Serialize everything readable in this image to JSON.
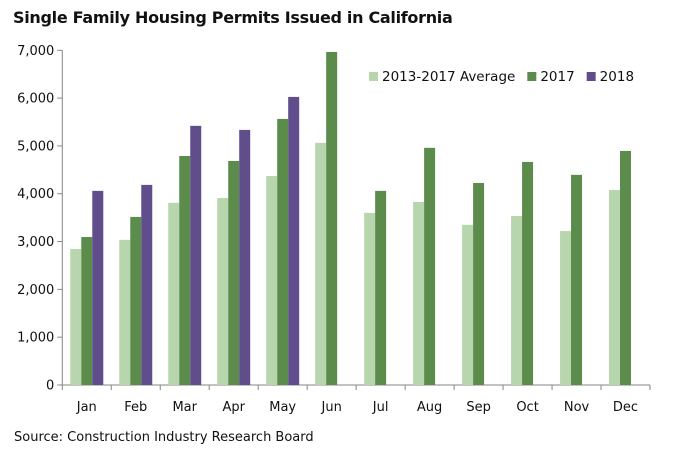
{
  "chart_data": {
    "type": "bar",
    "title": "Single Family Housing Permits Issued in California",
    "source": "Source: Construction Industry Research Board",
    "xlabel": "",
    "ylabel": "",
    "ylim": [
      0,
      7000
    ],
    "yticks": [
      "0",
      "1,000",
      "2,000",
      "3,000",
      "4,000",
      "5,000",
      "6,000",
      "7,000"
    ],
    "grid": false,
    "legend_position": "top-right",
    "categories": [
      "Jan",
      "Feb",
      "Mar",
      "Apr",
      "May",
      "Jun",
      "Jul",
      "Aug",
      "Sep",
      "Oct",
      "Nov",
      "Dec"
    ],
    "series": [
      {
        "name": "2013-2017 Average",
        "color": "#b8d6ad",
        "values": [
          2845,
          3035,
          3810,
          3910,
          4370,
          5065,
          3600,
          3830,
          3350,
          3535,
          3220,
          4080
        ]
      },
      {
        "name": "2017",
        "color": "#5b8c4b",
        "values": [
          3095,
          3515,
          4790,
          4685,
          5565,
          6965,
          4060,
          4960,
          4225,
          4665,
          4395,
          4895
        ]
      },
      {
        "name": "2018",
        "color": "#604d8b",
        "values": [
          4060,
          4185,
          5420,
          5335,
          6025,
          null,
          null,
          null,
          null,
          null,
          null,
          null
        ]
      }
    ]
  }
}
